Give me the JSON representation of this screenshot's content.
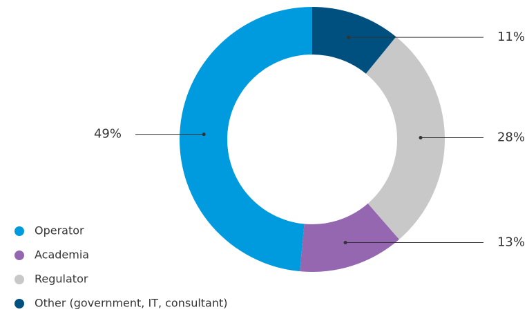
{
  "chart_data": {
    "type": "donut",
    "categories": [
      "Operator",
      "Academia",
      "Regulator",
      "Other (government, IT, consultant)"
    ],
    "values": [
      49,
      13,
      28,
      11
    ],
    "value_labels": [
      "49%",
      "13%",
      "28%",
      "11%"
    ],
    "colors": [
      "#009ade",
      "#9467b0",
      "#c8c8c8",
      "#00507f"
    ],
    "legend": "bottom-left"
  }
}
